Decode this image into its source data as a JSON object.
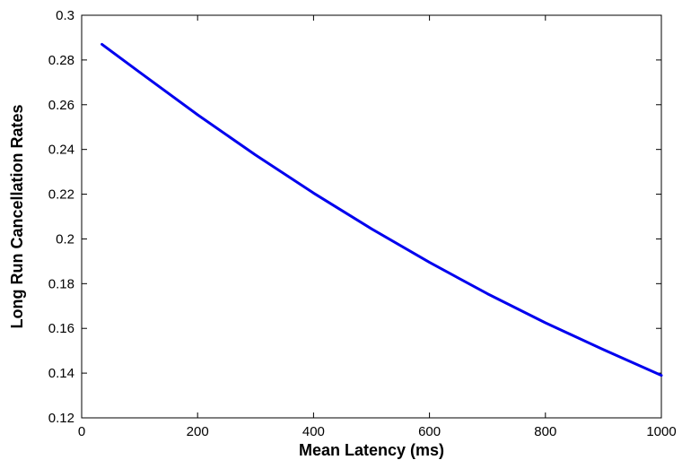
{
  "chart_data": {
    "type": "line",
    "title": "",
    "xlabel": "Mean Latency (ms)",
    "ylabel": "Long Run Cancellation Rates",
    "xlim": [
      0,
      1000
    ],
    "ylim": [
      0.12,
      0.3
    ],
    "xticks": [
      0,
      200,
      400,
      600,
      800,
      1000
    ],
    "xtick_labels": [
      "0",
      "200",
      "400",
      "600",
      "800",
      "1000"
    ],
    "yticks": [
      0.12,
      0.14,
      0.16,
      0.18,
      0.2,
      0.22,
      0.24,
      0.26,
      0.28,
      0.3
    ],
    "ytick_labels": [
      "0.12",
      "0.14",
      "0.16",
      "0.18",
      "0.2",
      "0.22",
      "0.24",
      "0.26",
      "0.28",
      "0.3"
    ],
    "grid": false,
    "legend": "none",
    "series": [
      {
        "color": "#0000ee",
        "x": [
          35,
          100,
          200,
          300,
          400,
          500,
          600,
          700,
          800,
          900,
          1000
        ],
        "y": [
          0.287,
          0.2745,
          0.2555,
          0.2375,
          0.2205,
          0.2045,
          0.1895,
          0.1755,
          0.1625,
          0.1505,
          0.139
        ]
      }
    ]
  }
}
